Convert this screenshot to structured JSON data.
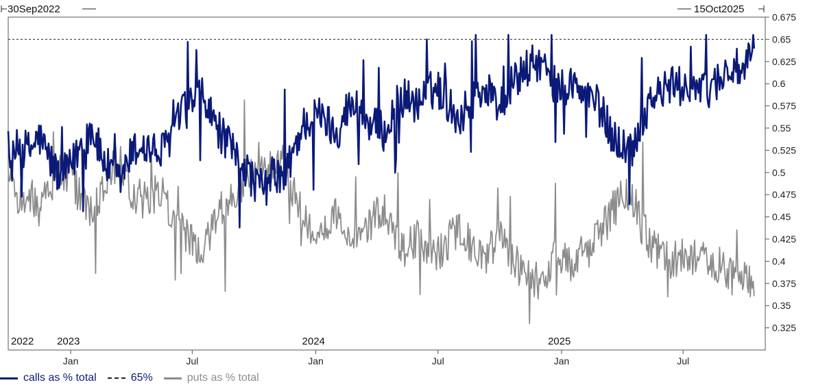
{
  "chart_data": {
    "type": "line",
    "title": "",
    "date_range": {
      "start": "30Sep2022",
      "end": "15Oct2025"
    },
    "ylim": [
      0.3,
      0.675
    ],
    "y_ticks": [
      "0.325",
      "0.35",
      "0.375",
      "0.4",
      "0.425",
      "0.45",
      "0.475",
      "0.5",
      "0.525",
      "0.55",
      "0.575",
      "0.6",
      "0.625",
      "0.65",
      "0.675"
    ],
    "month_ticks": [
      {
        "date": "2023-01-01",
        "label": "Jan"
      },
      {
        "date": "2023-07-01",
        "label": "Jul"
      },
      {
        "date": "2024-01-01",
        "label": "Jan"
      },
      {
        "date": "2024-07-01",
        "label": "Jul"
      },
      {
        "date": "2025-01-01",
        "label": "Jan"
      },
      {
        "date": "2025-07-01",
        "label": "Jul"
      }
    ],
    "year_labels": [
      {
        "date": "2022-10-01",
        "label": "2022"
      },
      {
        "date": "2023-01-01",
        "label": "2023"
      },
      {
        "date": "2024-01-01",
        "label": "2024"
      },
      {
        "date": "2025-01-01",
        "label": "2025"
      }
    ],
    "reference_line": {
      "value": 0.65,
      "name": "65%",
      "style": "dashed",
      "color": "#222222"
    },
    "series": [
      {
        "name": "calls as % total",
        "color": "#0b1a78",
        "points": [
          [
            "2022-09-30",
            0.5
          ],
          [
            "2022-10-15",
            0.53
          ],
          [
            "2022-11-01",
            0.525
          ],
          [
            "2022-11-15",
            0.54
          ],
          [
            "2022-12-01",
            0.515
          ],
          [
            "2022-12-15",
            0.495
          ],
          [
            "2023-01-01",
            0.505
          ],
          [
            "2023-01-15",
            0.53
          ],
          [
            "2023-02-01",
            0.55
          ],
          [
            "2023-02-15",
            0.52
          ],
          [
            "2023-03-01",
            0.5
          ],
          [
            "2023-03-15",
            0.49
          ],
          [
            "2023-04-01",
            0.52
          ],
          [
            "2023-04-15",
            0.53
          ],
          [
            "2023-05-01",
            0.525
          ],
          [
            "2023-05-15",
            0.52
          ],
          [
            "2023-06-01",
            0.545
          ],
          [
            "2023-06-15",
            0.565
          ],
          [
            "2023-07-01",
            0.58
          ],
          [
            "2023-07-15",
            0.585
          ],
          [
            "2023-08-01",
            0.56
          ],
          [
            "2023-08-15",
            0.54
          ],
          [
            "2023-09-01",
            0.52
          ],
          [
            "2023-09-15",
            0.51
          ],
          [
            "2023-10-01",
            0.49
          ],
          [
            "2023-10-15",
            0.48
          ],
          [
            "2023-11-01",
            0.5
          ],
          [
            "2023-11-15",
            0.49
          ],
          [
            "2023-12-01",
            0.53
          ],
          [
            "2023-12-15",
            0.555
          ],
          [
            "2024-01-01",
            0.565
          ],
          [
            "2024-01-15",
            0.56
          ],
          [
            "2024-02-01",
            0.545
          ],
          [
            "2024-02-15",
            0.57
          ],
          [
            "2024-03-01",
            0.575
          ],
          [
            "2024-03-15",
            0.56
          ],
          [
            "2024-04-01",
            0.55
          ],
          [
            "2024-04-15",
            0.545
          ],
          [
            "2024-05-01",
            0.58
          ],
          [
            "2024-05-15",
            0.585
          ],
          [
            "2024-06-01",
            0.575
          ],
          [
            "2024-06-15",
            0.59
          ],
          [
            "2024-07-01",
            0.595
          ],
          [
            "2024-07-15",
            0.58
          ],
          [
            "2024-08-01",
            0.56
          ],
          [
            "2024-08-15",
            0.575
          ],
          [
            "2024-09-01",
            0.595
          ],
          [
            "2024-09-15",
            0.59
          ],
          [
            "2024-10-01",
            0.575
          ],
          [
            "2024-10-15",
            0.595
          ],
          [
            "2024-11-01",
            0.61
          ],
          [
            "2024-11-15",
            0.62
          ],
          [
            "2024-12-01",
            0.625
          ],
          [
            "2024-12-15",
            0.6
          ],
          [
            "2025-01-01",
            0.595
          ],
          [
            "2025-01-15",
            0.6
          ],
          [
            "2025-02-01",
            0.59
          ],
          [
            "2025-02-15",
            0.585
          ],
          [
            "2025-03-01",
            0.57
          ],
          [
            "2025-03-15",
            0.545
          ],
          [
            "2025-04-01",
            0.53
          ],
          [
            "2025-04-15",
            0.525
          ],
          [
            "2025-05-01",
            0.56
          ],
          [
            "2025-05-15",
            0.585
          ],
          [
            "2025-06-01",
            0.59
          ],
          [
            "2025-06-15",
            0.6
          ],
          [
            "2025-07-01",
            0.595
          ],
          [
            "2025-07-15",
            0.6
          ],
          [
            "2025-08-01",
            0.59
          ],
          [
            "2025-08-15",
            0.6
          ],
          [
            "2025-09-01",
            0.61
          ],
          [
            "2025-09-15",
            0.62
          ],
          [
            "2025-10-01",
            0.61
          ],
          [
            "2025-10-15",
            0.645
          ]
        ]
      },
      {
        "name": "puts as % total",
        "color": "#8c8c8c",
        "points": [
          [
            "2022-09-30",
            0.5
          ],
          [
            "2022-10-15",
            0.47
          ],
          [
            "2022-11-01",
            0.475
          ],
          [
            "2022-11-15",
            0.46
          ],
          [
            "2022-12-01",
            0.485
          ],
          [
            "2022-12-15",
            0.505
          ],
          [
            "2023-01-01",
            0.495
          ],
          [
            "2023-01-15",
            0.47
          ],
          [
            "2023-02-01",
            0.45
          ],
          [
            "2023-02-15",
            0.48
          ],
          [
            "2023-03-01",
            0.5
          ],
          [
            "2023-03-15",
            0.51
          ],
          [
            "2023-04-01",
            0.48
          ],
          [
            "2023-04-15",
            0.47
          ],
          [
            "2023-05-01",
            0.475
          ],
          [
            "2023-05-15",
            0.48
          ],
          [
            "2023-06-01",
            0.455
          ],
          [
            "2023-06-15",
            0.435
          ],
          [
            "2023-07-01",
            0.42
          ],
          [
            "2023-07-15",
            0.415
          ],
          [
            "2023-08-01",
            0.44
          ],
          [
            "2023-08-15",
            0.46
          ],
          [
            "2023-09-01",
            0.48
          ],
          [
            "2023-09-15",
            0.49
          ],
          [
            "2023-10-01",
            0.51
          ],
          [
            "2023-10-15",
            0.52
          ],
          [
            "2023-11-01",
            0.5
          ],
          [
            "2023-11-15",
            0.51
          ],
          [
            "2023-12-01",
            0.47
          ],
          [
            "2023-12-15",
            0.445
          ],
          [
            "2024-01-01",
            0.435
          ],
          [
            "2024-01-15",
            0.44
          ],
          [
            "2024-02-01",
            0.455
          ],
          [
            "2024-02-15",
            0.43
          ],
          [
            "2024-03-01",
            0.425
          ],
          [
            "2024-03-15",
            0.44
          ],
          [
            "2024-04-01",
            0.45
          ],
          [
            "2024-04-15",
            0.455
          ],
          [
            "2024-05-01",
            0.42
          ],
          [
            "2024-05-15",
            0.415
          ],
          [
            "2024-06-01",
            0.425
          ],
          [
            "2024-06-15",
            0.41
          ],
          [
            "2024-07-01",
            0.405
          ],
          [
            "2024-07-15",
            0.42
          ],
          [
            "2024-08-01",
            0.44
          ],
          [
            "2024-08-15",
            0.425
          ],
          [
            "2024-09-01",
            0.405
          ],
          [
            "2024-09-15",
            0.41
          ],
          [
            "2024-10-01",
            0.425
          ],
          [
            "2024-10-15",
            0.405
          ],
          [
            "2024-11-01",
            0.39
          ],
          [
            "2024-11-15",
            0.38
          ],
          [
            "2024-12-01",
            0.375
          ],
          [
            "2024-12-15",
            0.4
          ],
          [
            "2025-01-01",
            0.405
          ],
          [
            "2025-01-15",
            0.4
          ],
          [
            "2025-02-01",
            0.41
          ],
          [
            "2025-02-15",
            0.415
          ],
          [
            "2025-03-01",
            0.43
          ],
          [
            "2025-03-15",
            0.455
          ],
          [
            "2025-04-01",
            0.47
          ],
          [
            "2025-04-15",
            0.475
          ],
          [
            "2025-05-01",
            0.44
          ],
          [
            "2025-05-15",
            0.415
          ],
          [
            "2025-06-01",
            0.41
          ],
          [
            "2025-06-15",
            0.4
          ],
          [
            "2025-07-01",
            0.405
          ],
          [
            "2025-07-15",
            0.4
          ],
          [
            "2025-08-01",
            0.41
          ],
          [
            "2025-08-15",
            0.4
          ],
          [
            "2025-09-01",
            0.39
          ],
          [
            "2025-09-15",
            0.38
          ],
          [
            "2025-10-01",
            0.39
          ],
          [
            "2025-10-15",
            0.355
          ]
        ]
      }
    ],
    "legend": {
      "position": "bottom-left",
      "entries": [
        {
          "label": "calls as % total",
          "style": "solid",
          "color": "#0b1a78"
        },
        {
          "label": "65%",
          "style": "dashed",
          "color": "#222222"
        },
        {
          "label": "puts as % total",
          "style": "solid",
          "color": "#8c8c8c"
        }
      ]
    },
    "grid": false
  }
}
